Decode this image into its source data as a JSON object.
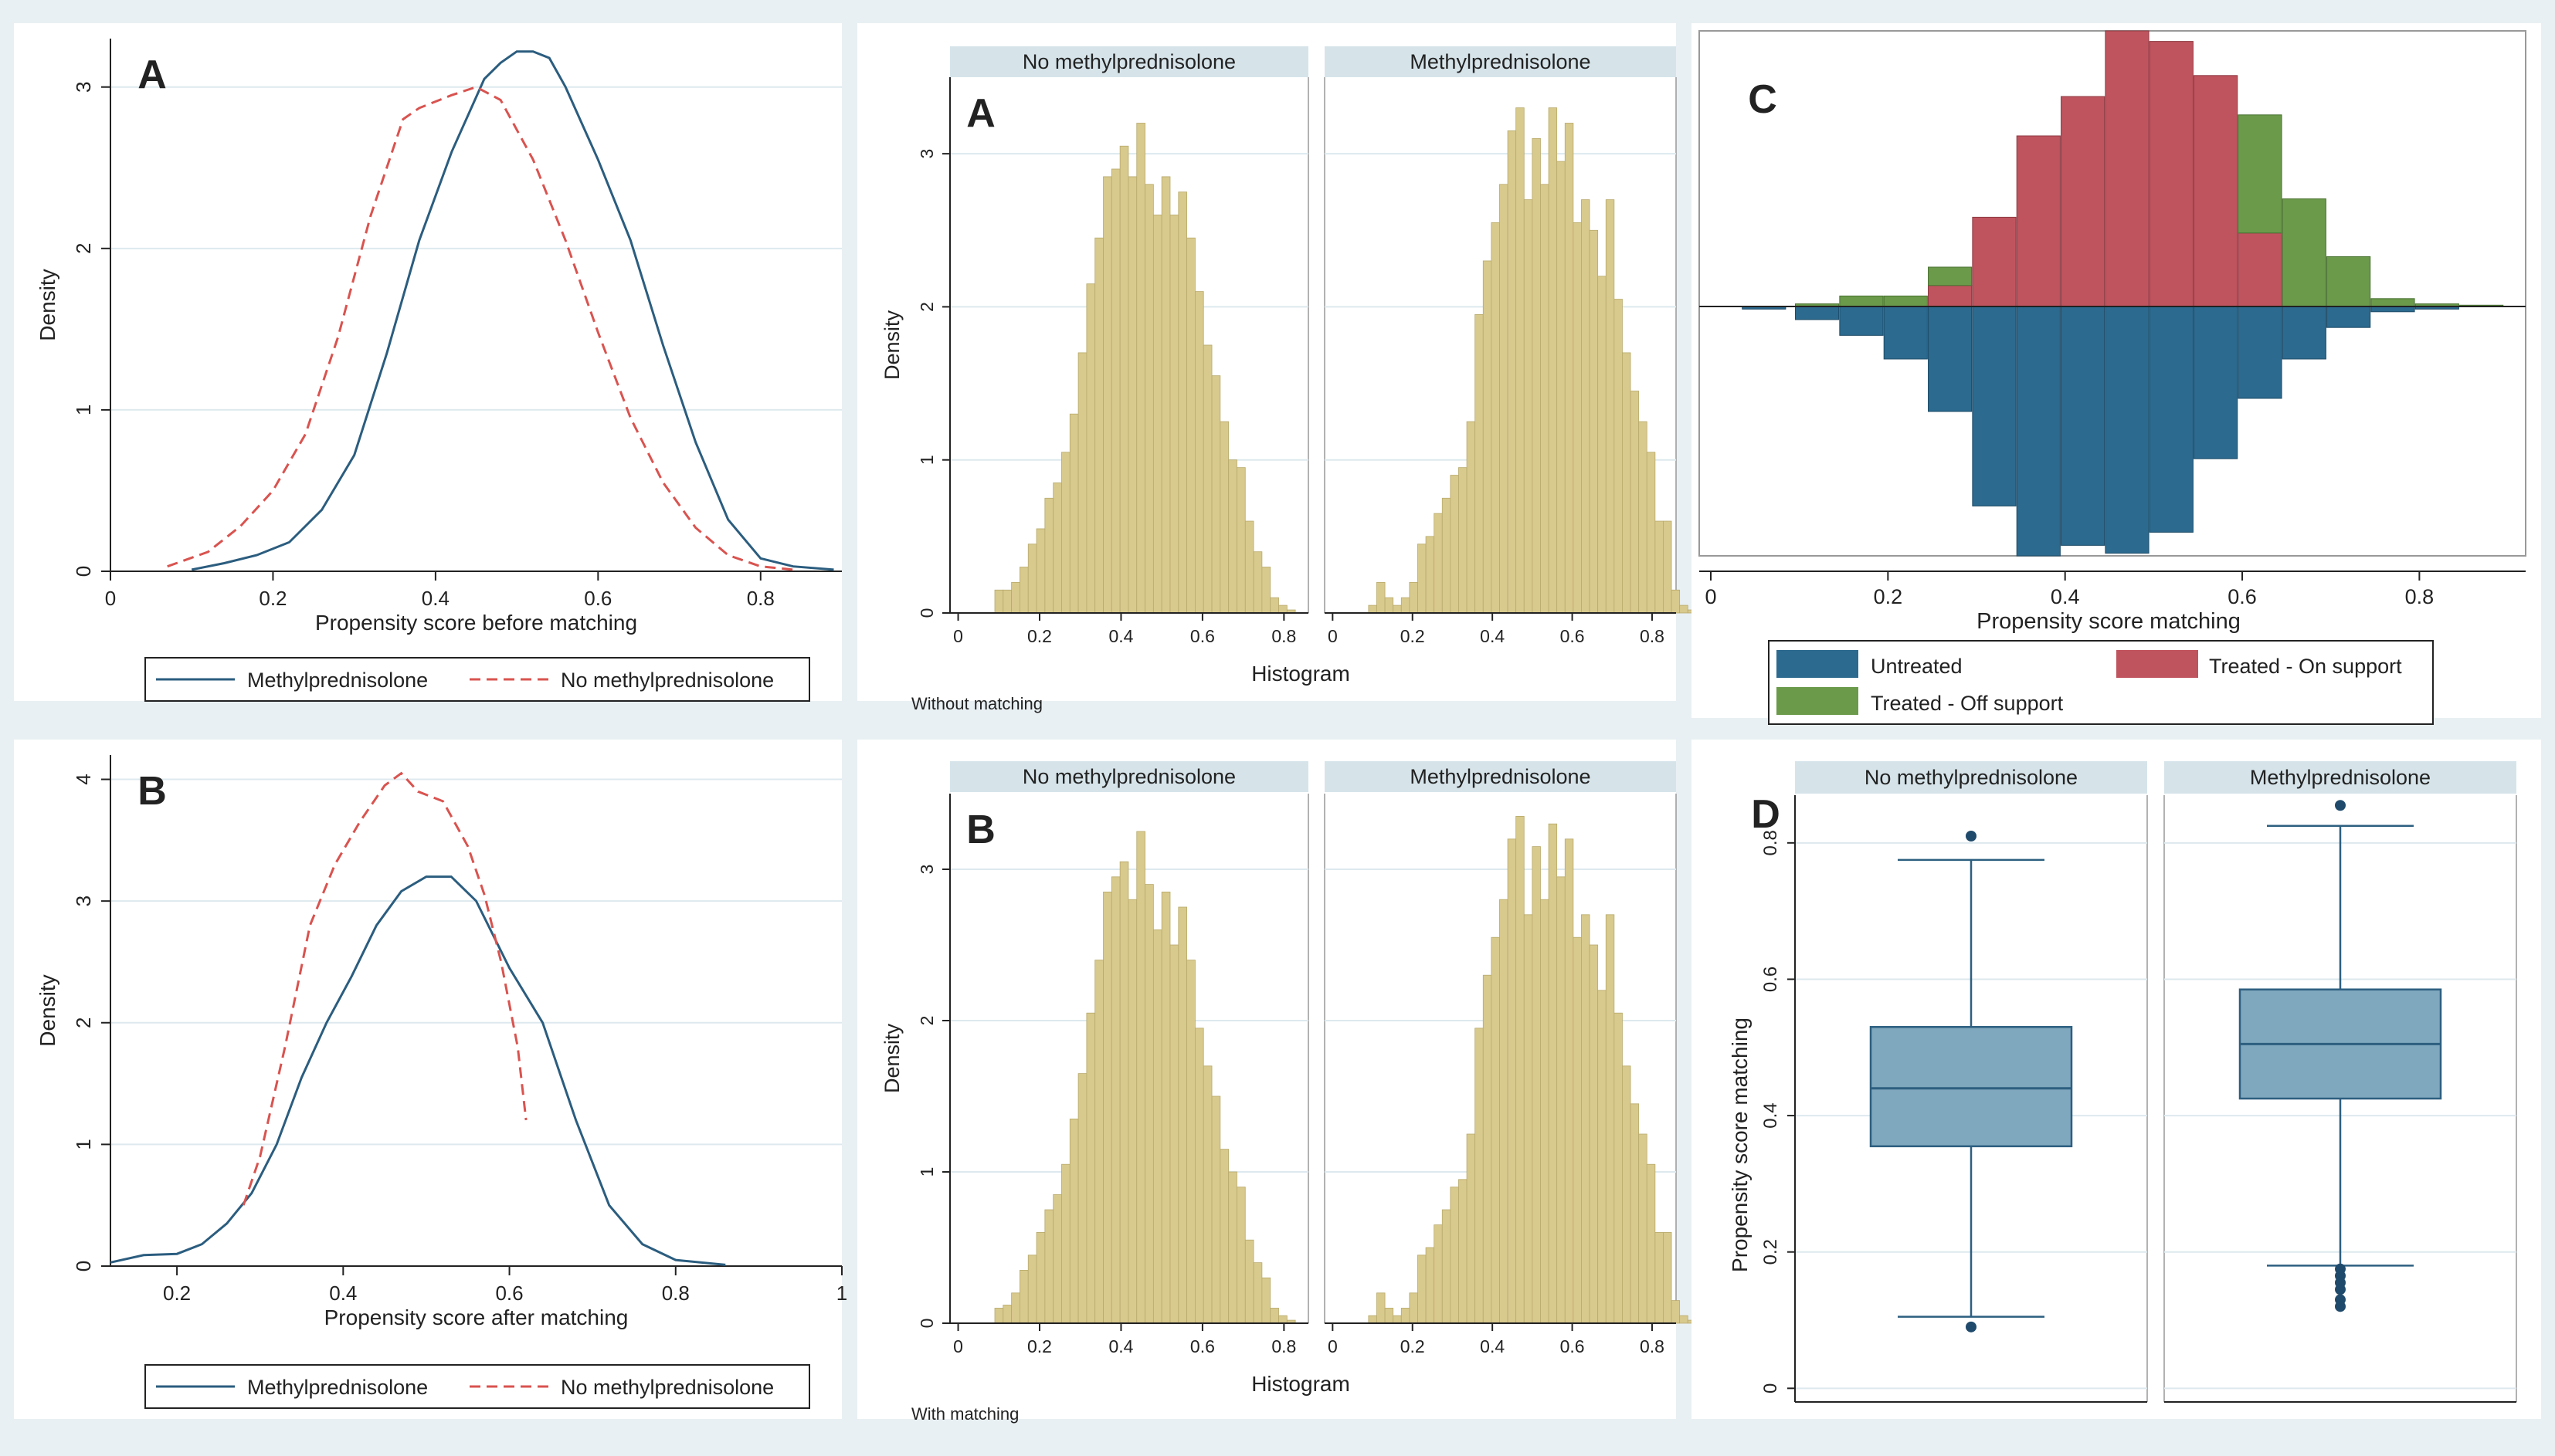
{
  "colors": {
    "methyl_line": "#2b5d7f",
    "nomethyl_line": "#d9534f",
    "hist_fill": "#d8c98d",
    "hist_stroke": "#b8aa6c",
    "untreated": "#2c6a8f",
    "treated_on": "#c0545e",
    "treated_off": "#6a9a4a",
    "box_fill": "#7fa7bd",
    "box_stroke": "#2d5f80",
    "strip": "#d6e4ea",
    "grid": "#dde9ee",
    "axis": "#222222"
  },
  "chart_data": [
    {
      "id": "A_density",
      "type": "line",
      "label": "A",
      "xlabel": "Propensity score before matching",
      "ylabel": "Density",
      "xlim": [
        0,
        0.9
      ],
      "ylim": [
        0,
        3.3
      ],
      "xticks": [
        "0",
        "0.2",
        "0.4",
        "0.6",
        "0.8"
      ],
      "yticks": [
        "0",
        "1",
        "2",
        "3"
      ],
      "legend": [
        "Methylprednisolone",
        "No methylprednisolone"
      ],
      "series": [
        {
          "name": "Methylprednisolone",
          "style": "solid",
          "x": [
            0.1,
            0.14,
            0.18,
            0.22,
            0.26,
            0.3,
            0.34,
            0.38,
            0.42,
            0.46,
            0.48,
            0.5,
            0.52,
            0.54,
            0.56,
            0.6,
            0.64,
            0.68,
            0.72,
            0.76,
            0.8,
            0.84,
            0.89
          ],
          "y": [
            0.01,
            0.05,
            0.1,
            0.18,
            0.38,
            0.72,
            1.35,
            2.05,
            2.6,
            3.05,
            3.15,
            3.22,
            3.22,
            3.18,
            3.0,
            2.55,
            2.05,
            1.4,
            0.8,
            0.32,
            0.08,
            0.03,
            0.01
          ]
        },
        {
          "name": "No methylprednisolone",
          "style": "dashed",
          "x": [
            0.07,
            0.12,
            0.16,
            0.2,
            0.24,
            0.28,
            0.32,
            0.36,
            0.38,
            0.42,
            0.45,
            0.48,
            0.52,
            0.56,
            0.6,
            0.64,
            0.68,
            0.72,
            0.76,
            0.8,
            0.84
          ],
          "y": [
            0.03,
            0.12,
            0.28,
            0.5,
            0.85,
            1.45,
            2.2,
            2.8,
            2.87,
            2.95,
            3.0,
            2.92,
            2.55,
            2.05,
            1.48,
            0.95,
            0.55,
            0.27,
            0.1,
            0.03,
            0.01
          ]
        }
      ]
    },
    {
      "id": "B_density",
      "type": "line",
      "label": "B",
      "xlabel": "Propensity score after matching",
      "ylabel": "Density",
      "xlim": [
        0.12,
        1.0
      ],
      "ylim": [
        0,
        4.2
      ],
      "xticks": [
        "0.2",
        "0.4",
        "0.6",
        "0.8",
        "1"
      ],
      "yticks": [
        "0",
        "1",
        "2",
        "3",
        "4"
      ],
      "legend": [
        "Methylprednisolone",
        "No methylprednisolone"
      ],
      "series": [
        {
          "name": "Methylprednisolone",
          "style": "solid",
          "x": [
            0.12,
            0.16,
            0.2,
            0.23,
            0.26,
            0.29,
            0.32,
            0.35,
            0.38,
            0.41,
            0.44,
            0.47,
            0.5,
            0.53,
            0.56,
            0.6,
            0.64,
            0.68,
            0.72,
            0.76,
            0.8,
            0.86
          ],
          "y": [
            0.03,
            0.09,
            0.1,
            0.18,
            0.35,
            0.6,
            1.0,
            1.55,
            2.0,
            2.38,
            2.8,
            3.08,
            3.2,
            3.2,
            3.0,
            2.45,
            2.0,
            1.2,
            0.5,
            0.18,
            0.05,
            0.01
          ]
        },
        {
          "name": "No methylprednisolone",
          "style": "dashed",
          "x": [
            0.28,
            0.3,
            0.33,
            0.36,
            0.39,
            0.42,
            0.45,
            0.47,
            0.49,
            0.52,
            0.55,
            0.57,
            0.59,
            0.61,
            0.62
          ],
          "y": [
            0.5,
            0.9,
            1.8,
            2.8,
            3.3,
            3.65,
            3.95,
            4.05,
            3.9,
            3.82,
            3.45,
            3.05,
            2.5,
            1.8,
            1.2
          ]
        }
      ]
    },
    {
      "id": "A_hist",
      "type": "bar",
      "label": "A",
      "facets": [
        "No methylprednisolone",
        "Methylprednisolone"
      ],
      "ylabel": "Density",
      "xlabel": "Histogram",
      "note": "Without matching",
      "xlim": [
        -0.02,
        0.86
      ],
      "ylim": [
        0,
        3.5
      ],
      "xticks": [
        "0",
        "0.2",
        "0.4",
        "0.6",
        "0.8"
      ],
      "yticks": [
        "0",
        "1",
        "2",
        "3"
      ],
      "bin_start": 0.09,
      "bin_width": 0.02,
      "series": [
        {
          "name": "No methylprednisolone",
          "values": [
            0.15,
            0.15,
            0.2,
            0.3,
            0.45,
            0.55,
            0.75,
            0.85,
            1.05,
            1.3,
            1.7,
            2.15,
            2.45,
            2.85,
            2.9,
            3.05,
            2.85,
            3.2,
            2.8,
            2.6,
            2.85,
            2.6,
            2.75,
            2.45,
            2.1,
            1.75,
            1.55,
            1.25,
            1.0,
            0.95,
            0.6,
            0.4,
            0.3,
            0.1,
            0.05,
            0.02
          ]
        },
        {
          "name": "Methylprednisolone",
          "values": [
            0.05,
            0.2,
            0.1,
            0.05,
            0.1,
            0.2,
            0.45,
            0.5,
            0.65,
            0.75,
            0.9,
            0.95,
            1.25,
            1.95,
            2.3,
            2.55,
            2.8,
            3.15,
            3.3,
            2.7,
            3.1,
            2.8,
            3.3,
            2.95,
            3.2,
            2.55,
            2.7,
            2.5,
            2.2,
            2.7,
            2.05,
            1.7,
            1.45,
            1.25,
            1.05,
            0.6,
            0.6,
            0.15,
            0.05,
            0.02
          ]
        }
      ],
      "facet_bin_starts": [
        0.09,
        0.09
      ]
    },
    {
      "id": "B_hist",
      "type": "bar",
      "label": "B",
      "facets": [
        "No methylprednisolone",
        "Methylprednisolone"
      ],
      "ylabel": "Density",
      "xlabel": "Histogram",
      "note": "With matching",
      "xlim": [
        -0.02,
        0.86
      ],
      "ylim": [
        0,
        3.5
      ],
      "xticks": [
        "0",
        "0.2",
        "0.4",
        "0.6",
        "0.8"
      ],
      "yticks": [
        "0",
        "1",
        "2",
        "3"
      ],
      "series": [
        {
          "name": "No methylprednisolone",
          "values": [
            0.1,
            0.12,
            0.2,
            0.35,
            0.45,
            0.6,
            0.75,
            0.85,
            1.05,
            1.35,
            1.65,
            2.05,
            2.4,
            2.85,
            2.95,
            3.05,
            2.8,
            3.25,
            2.9,
            2.6,
            2.85,
            2.5,
            2.75,
            2.4,
            1.95,
            1.7,
            1.5,
            1.15,
            1.0,
            0.9,
            0.55,
            0.4,
            0.3,
            0.1,
            0.05,
            0.02
          ]
        },
        {
          "name": "Methylprednisolone",
          "values": [
            0.05,
            0.2,
            0.1,
            0.05,
            0.1,
            0.2,
            0.45,
            0.5,
            0.65,
            0.75,
            0.9,
            0.95,
            1.25,
            1.95,
            2.3,
            2.55,
            2.8,
            3.2,
            3.35,
            2.7,
            3.15,
            2.8,
            3.3,
            2.95,
            3.2,
            2.55,
            2.7,
            2.5,
            2.2,
            2.7,
            2.05,
            1.7,
            1.45,
            1.25,
            1.05,
            0.6,
            0.6,
            0.15,
            0.05,
            0.02
          ]
        }
      ],
      "facet_bin_starts": [
        0.09,
        0.09
      ]
    },
    {
      "id": "C_mirror",
      "type": "bar",
      "label": "C",
      "xlabel": "Propensity score matching",
      "xlim": [
        0,
        0.92
      ],
      "ylim": [
        -0.95,
        1.05
      ],
      "xticks": [
        "0",
        "0.2",
        "0.4",
        "0.6",
        "0.8"
      ],
      "bin_centers": [
        0.06,
        0.12,
        0.17,
        0.22,
        0.27,
        0.32,
        0.37,
        0.42,
        0.47,
        0.52,
        0.57,
        0.62,
        0.67,
        0.72,
        0.77,
        0.82,
        0.87
      ],
      "series": [
        {
          "name": "Untreated",
          "values": [
            -0.01,
            -0.05,
            -0.11,
            -0.2,
            -0.4,
            -0.76,
            -0.95,
            -0.91,
            -0.94,
            -0.86,
            -0.58,
            -0.35,
            -0.2,
            -0.08,
            -0.02,
            -0.01,
            0
          ]
        },
        {
          "name": "Treated - On support",
          "values": [
            0,
            0,
            0,
            0,
            0.08,
            0.34,
            0.65,
            0.8,
            1.05,
            1.01,
            0.88,
            0.28,
            0,
            0,
            0,
            0,
            0
          ]
        },
        {
          "name": "Treated - Off support",
          "values": [
            0,
            0.01,
            0.04,
            0.04,
            0.07,
            0,
            0,
            0,
            0,
            0,
            0,
            0.45,
            0.41,
            0.19,
            0.03,
            0.01,
            0.005
          ]
        }
      ],
      "legend": [
        "Untreated",
        "Treated - On support",
        "Treated - Off support"
      ]
    },
    {
      "id": "D_box",
      "type": "box",
      "label": "D",
      "facets": [
        "No methylprednisolone",
        "Methylprednisolone"
      ],
      "ylabel": "Propensity score matching",
      "ylim": [
        -0.02,
        0.87
      ],
      "yticks": [
        "0",
        "0.2",
        "0.4",
        "0.6",
        "0.8"
      ],
      "boxes": [
        {
          "name": "No methylprednisolone",
          "min": 0.105,
          "q1": 0.355,
          "median": 0.44,
          "q3": 0.53,
          "max": 0.775,
          "outliers": [
            0.81,
            0.09
          ]
        },
        {
          "name": "Methylprednisolone",
          "min": 0.18,
          "q1": 0.425,
          "median": 0.505,
          "q3": 0.585,
          "max": 0.825,
          "outliers": [
            0.855,
            0.175,
            0.165,
            0.155,
            0.145,
            0.13,
            0.12
          ]
        }
      ]
    }
  ]
}
